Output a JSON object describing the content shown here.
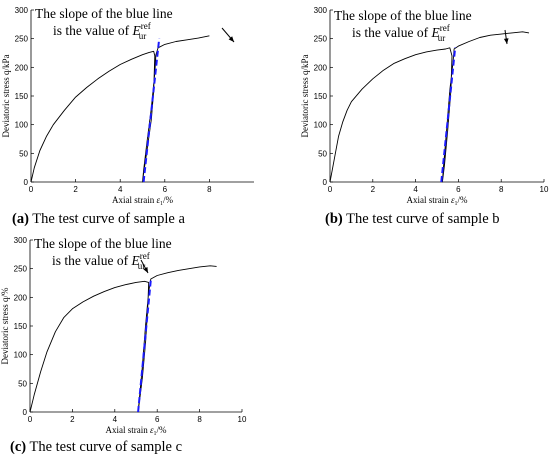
{
  "panels": [
    {
      "id": "a",
      "caption_letter": "(a)",
      "caption_text": " The test curve of sample a",
      "annotation_line1": "The slope of the blue line",
      "annotation_line2": "is the value of ",
      "annotation_symbol": "E",
      "annotation_sup": "ref",
      "annotation_sub": "ur"
    },
    {
      "id": "b",
      "caption_letter": "(b)",
      "caption_text": " The test curve of sample b",
      "annotation_line1": "The slope of the blue line",
      "annotation_line2": "is the value of ",
      "annotation_symbol": "E",
      "annotation_sup": "ref",
      "annotation_sub": "ur"
    },
    {
      "id": "c",
      "caption_letter": "(c)",
      "caption_text": " The test curve of sample c",
      "annotation_line1": "The slope of the blue line",
      "annotation_line2": "is the value of ",
      "annotation_symbol": "E",
      "annotation_sup": "ref",
      "annotation_sub": "ur"
    }
  ],
  "chart_data": [
    {
      "type": "line",
      "panel": "a",
      "xlabel": "Axial strain ε1/%",
      "ylabel": "Deviatoric stress q/kPa",
      "xlim": [
        0,
        10
      ],
      "ylim": [
        0,
        300
      ],
      "xticks": [
        0,
        2,
        4,
        6,
        8
      ],
      "yticks": [
        0,
        50,
        100,
        150,
        200,
        250,
        300
      ],
      "colors": {
        "curve": "#000000",
        "slope_line": "#1a1aff"
      },
      "series": [
        {
          "role": "curve",
          "x": [
            0,
            0.15,
            0.4,
            0.7,
            1.0,
            1.5,
            2.0,
            2.5,
            3.0,
            3.5,
            4.0,
            4.5,
            5.0,
            5.3,
            5.5,
            5.55,
            5.5,
            5.4,
            5.2,
            5.05,
            5.0,
            5.05,
            5.2,
            5.4,
            5.55,
            5.6,
            5.7,
            6.0,
            6.5,
            7.0,
            7.5,
            8.0
          ],
          "y": [
            0,
            25,
            55,
            80,
            100,
            125,
            148,
            165,
            180,
            193,
            205,
            214,
            222,
            226,
            228,
            220,
            160,
            110,
            55,
            15,
            0,
            20,
            70,
            130,
            190,
            222,
            234,
            240,
            245,
            248,
            251,
            255
          ]
        },
        {
          "role": "slope_line",
          "x": [
            5.05,
            5.75
          ],
          "y": [
            0,
            250
          ]
        }
      ]
    },
    {
      "type": "line",
      "panel": "b",
      "xlabel": "Axial strain ε1/%",
      "ylabel": "Deviatoric stress q/kPa",
      "xlim": [
        0,
        10
      ],
      "ylim": [
        0,
        300
      ],
      "xticks": [
        0,
        2,
        4,
        6,
        8,
        10
      ],
      "yticks": [
        0,
        50,
        100,
        150,
        200,
        250,
        300
      ],
      "colors": {
        "curve": "#000000",
        "slope_line": "#1a1aff"
      },
      "series": [
        {
          "role": "curve",
          "x": [
            0,
            0.2,
            0.4,
            0.6,
            0.8,
            1.0,
            1.5,
            2.0,
            2.5,
            3.0,
            3.5,
            4.0,
            4.5,
            5.0,
            5.4,
            5.6,
            5.7,
            5.65,
            5.5,
            5.35,
            5.25,
            5.3,
            5.45,
            5.6,
            5.75,
            5.8,
            6.0,
            6.5,
            7.0,
            7.5,
            8.0,
            8.5,
            9.0,
            9.3
          ],
          "y": [
            0,
            40,
            80,
            105,
            125,
            140,
            162,
            180,
            195,
            207,
            215,
            222,
            227,
            230,
            232,
            234,
            220,
            160,
            90,
            30,
            0,
            25,
            90,
            160,
            210,
            232,
            237,
            245,
            252,
            256,
            258,
            260,
            262,
            260
          ]
        },
        {
          "role": "slope_line",
          "x": [
            5.2,
            5.85
          ],
          "y": [
            0,
            235
          ]
        }
      ]
    },
    {
      "type": "line",
      "panel": "c",
      "xlabel": "Axial strain ε1/%",
      "ylabel": "Deviatoric stress q/%",
      "xlim": [
        0,
        10
      ],
      "ylim": [
        0,
        300
      ],
      "xticks": [
        0,
        2,
        4,
        6,
        8,
        10
      ],
      "yticks": [
        0,
        50,
        100,
        150,
        200,
        250,
        300
      ],
      "colors": {
        "curve": "#000000",
        "slope_line": "#1a1aff"
      },
      "series": [
        {
          "role": "curve",
          "x": [
            0,
            0.2,
            0.5,
            0.8,
            1.2,
            1.6,
            2.0,
            2.5,
            3.0,
            3.5,
            4.0,
            4.5,
            5.0,
            5.4,
            5.6,
            5.55,
            5.45,
            5.3,
            5.15,
            5.1,
            5.15,
            5.3,
            5.45,
            5.6,
            5.7,
            6.0,
            6.5,
            7.0,
            7.5,
            8.0,
            8.5,
            8.8
          ],
          "y": [
            0,
            30,
            70,
            105,
            140,
            165,
            180,
            192,
            202,
            210,
            217,
            222,
            226,
            228,
            226,
            180,
            120,
            60,
            15,
            0,
            20,
            80,
            150,
            210,
            232,
            238,
            243,
            247,
            250,
            253,
            255,
            254
          ]
        },
        {
          "role": "slope_line",
          "x": [
            5.1,
            5.7
          ],
          "y": [
            0,
            230
          ]
        }
      ]
    }
  ]
}
